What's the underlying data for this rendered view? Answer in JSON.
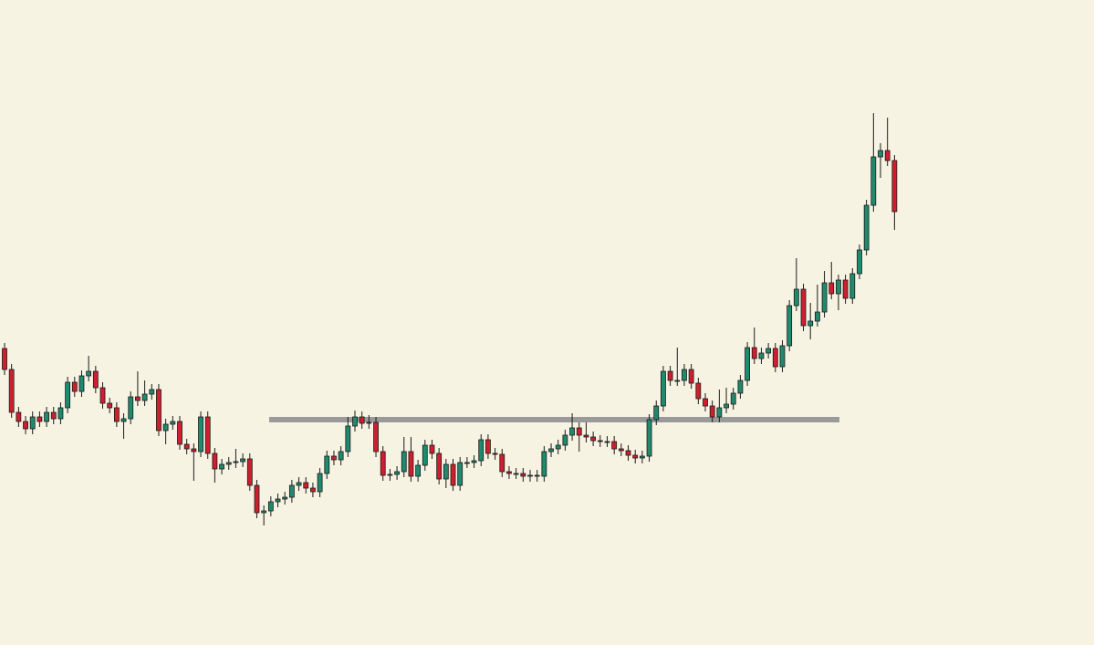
{
  "chart_data": {
    "type": "candlestick",
    "up_color": "#1f8a6e",
    "down_color": "#cf1f2e",
    "background": "#f7f3e3",
    "ylim": [
      0,
      707
    ],
    "level": {
      "value": 247,
      "color": "#9a9a9a"
    },
    "open": [
      325,
      302,
      255,
      245,
      237,
      250,
      245,
      255,
      248,
      260,
      288,
      278,
      295,
      300,
      282,
      265,
      260,
      245,
      248,
      272,
      268,
      275,
      280,
      235,
      242,
      245,
      220,
      215,
      212,
      250,
      210,
      193,
      198,
      200,
      201,
      204,
      175,
      145,
      147,
      157,
      160,
      162,
      175,
      178,
      172,
      168,
      188,
      207,
      203,
      212,
      240,
      250,
      243,
      244,
      212,
      186,
      187,
      190,
      212,
      185,
      197,
      219,
      210,
      182,
      198,
      175,
      200,
      200,
      202,
      225,
      210,
      209,
      190,
      188,
      188,
      185,
      186,
      185,
      212,
      215,
      219,
      230,
      238,
      230,
      228,
      224,
      223,
      223,
      215,
      213,
      208,
      205,
      207,
      247,
      262,
      300,
      290,
      290,
      302,
      287,
      270,
      262,
      250,
      260,
      264,
      276,
      290,
      326,
      314,
      320,
      325,
      305,
      328,
      372,
      390,
      350,
      355,
      365,
      397,
      385,
      400,
      380,
      407,
      433,
      482,
      535,
      542,
      531
    ],
    "high": [
      331,
      308,
      261,
      251,
      256,
      256,
      261,
      261,
      266,
      294,
      294,
      301,
      317,
      306,
      288,
      271,
      266,
      254,
      278,
      300,
      290,
      286,
      286,
      248,
      251,
      251,
      226,
      221,
      256,
      256,
      216,
      204,
      206,
      215,
      210,
      210,
      181,
      153,
      163,
      166,
      168,
      181,
      184,
      184,
      178,
      194,
      213,
      213,
      218,
      250,
      257,
      256,
      252,
      250,
      218,
      193,
      196,
      228,
      228,
      203,
      225,
      225,
      216,
      204,
      204,
      206,
      206,
      208,
      231,
      231,
      216,
      215,
      196,
      194,
      194,
      192,
      192,
      218,
      221,
      225,
      236,
      254,
      244,
      244,
      234,
      230,
      229,
      229,
      221,
      219,
      214,
      213,
      253,
      268,
      306,
      306,
      326,
      308,
      308,
      293,
      276,
      268,
      280,
      282,
      282,
      296,
      332,
      348,
      326,
      331,
      331,
      334,
      378,
      424,
      396,
      375,
      395,
      410,
      420,
      406,
      406,
      413,
      439,
      488,
      583,
      550,
      578,
      537
    ],
    "low": [
      296,
      249,
      239,
      231,
      231,
      239,
      239,
      242,
      242,
      254,
      272,
      272,
      289,
      276,
      259,
      254,
      239,
      226,
      242,
      262,
      262,
      269,
      229,
      220,
      236,
      214,
      209,
      180,
      206,
      204,
      178,
      187,
      192,
      194,
      195,
      169,
      139,
      131,
      141,
      151,
      154,
      156,
      169,
      166,
      162,
      162,
      182,
      197,
      197,
      206,
      234,
      237,
      237,
      206,
      180,
      180,
      181,
      184,
      179,
      179,
      191,
      204,
      176,
      172,
      169,
      169,
      194,
      194,
      196,
      204,
      203,
      184,
      182,
      182,
      179,
      179,
      179,
      179,
      206,
      209,
      213,
      224,
      212,
      222,
      218,
      217,
      217,
      209,
      207,
      202,
      199,
      199,
      201,
      241,
      256,
      284,
      284,
      284,
      281,
      264,
      256,
      244,
      244,
      254,
      258,
      270,
      284,
      308,
      308,
      314,
      299,
      299,
      322,
      366,
      344,
      335,
      349,
      359,
      379,
      367,
      374,
      374,
      401,
      427,
      475,
      512,
      525,
      455
    ],
    "close": [
      302,
      255,
      245,
      237,
      250,
      245,
      255,
      248,
      260,
      288,
      278,
      295,
      300,
      282,
      265,
      260,
      245,
      248,
      272,
      268,
      275,
      280,
      235,
      242,
      245,
      220,
      215,
      212,
      250,
      210,
      193,
      198,
      200,
      201,
      204,
      175,
      145,
      147,
      157,
      160,
      162,
      175,
      178,
      172,
      168,
      188,
      207,
      203,
      212,
      240,
      250,
      243,
      244,
      212,
      186,
      187,
      190,
      212,
      185,
      197,
      219,
      210,
      182,
      198,
      175,
      200,
      200,
      202,
      225,
      210,
      209,
      190,
      188,
      188,
      185,
      186,
      185,
      212,
      215,
      219,
      230,
      238,
      230,
      228,
      224,
      223,
      223,
      215,
      213,
      208,
      205,
      207,
      247,
      262,
      300,
      290,
      290,
      302,
      287,
      270,
      262,
      250,
      260,
      264,
      276,
      290,
      326,
      314,
      320,
      325,
      305,
      328,
      372,
      390,
      350,
      355,
      365,
      397,
      385,
      400,
      380,
      407,
      433,
      482,
      535,
      542,
      531,
      475
    ]
  }
}
